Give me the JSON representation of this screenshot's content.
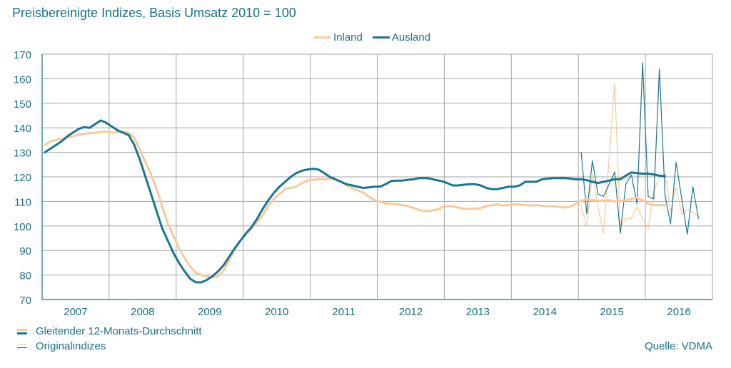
{
  "chart_data": {
    "type": "line",
    "title": "Preisbereinigte Indizes, Basis Umsatz 2010 = 100",
    "xlabel": "",
    "ylabel": "",
    "ylim": [
      70,
      170
    ],
    "yticks": [
      "70",
      "80",
      "90",
      "100",
      "110",
      "120",
      "130",
      "140",
      "150",
      "160",
      "170"
    ],
    "x_categories": [
      "2007",
      "2008",
      "2009",
      "2010",
      "2011",
      "2012",
      "2013",
      "2014",
      "2015",
      "2016"
    ],
    "x_unit": "month index from Jan 2007",
    "grid": true,
    "legend_top": [
      {
        "name": "Inland",
        "color": "#f9c99a"
      },
      {
        "name": "Ausland",
        "color": "#1a7690"
      }
    ],
    "legend_bottom": [
      {
        "name": "Gleitender 12-Monats-Durchschnitt",
        "style": "thick"
      },
      {
        "name": "Originalindizes",
        "style": "thin"
      }
    ],
    "source": "Quelle: VDMA",
    "series": [
      {
        "name": "Inland – Gleitender 12-Monats-Durchschnitt",
        "color": "#f9c99a",
        "kind": "moving_average",
        "start_month": 0,
        "values": [
          133,
          134.5,
          135,
          135.5,
          136,
          136.5,
          137.2,
          137.5,
          137.8,
          138,
          138.3,
          138.5,
          138,
          138.2,
          138.5,
          138,
          136,
          131,
          126,
          121,
          115,
          108,
          101,
          96,
          91,
          87,
          83.5,
          81,
          80,
          79.5,
          79,
          79.5,
          82,
          86,
          90.5,
          94,
          96.5,
          99,
          101.5,
          104.5,
          108.5,
          111,
          113,
          115,
          115.5,
          116,
          117.5,
          118.5,
          118.8,
          119,
          119,
          119.2,
          119,
          118,
          116.5,
          115.5,
          114.5,
          113.5,
          112,
          110.5,
          109.8,
          109.2,
          109,
          108.8,
          108.5,
          108,
          107.3,
          106.5,
          106,
          106.2,
          106.5,
          107.5,
          108,
          108,
          107.5,
          107,
          107,
          107,
          107.3,
          108,
          108.5,
          108.8,
          108.3,
          108.5,
          108.8,
          108.7,
          108.5,
          108.3,
          108.5,
          108.2,
          108,
          108,
          107.8,
          107.5,
          107.8,
          109,
          110.3,
          110.8,
          110.5,
          110.3,
          110.3,
          110.5,
          110,
          110.2,
          110.5,
          111,
          111.5,
          110.5,
          109,
          108.5,
          108.5,
          108.5
        ]
      },
      {
        "name": "Ausland – Gleitender 12-Monats-Durchschnitt",
        "color": "#1a7690",
        "kind": "moving_average",
        "start_month": 0,
        "values": [
          130,
          131.5,
          133,
          134.5,
          136.5,
          138,
          139.5,
          140.3,
          140,
          141.5,
          143,
          142,
          140.5,
          139,
          138,
          137,
          133,
          127,
          120,
          113,
          106,
          99,
          94,
          89,
          85,
          81.5,
          78.5,
          77,
          77,
          78,
          79.5,
          81.5,
          84,
          87.5,
          91,
          94,
          97,
          99.5,
          103,
          107,
          110.5,
          113.5,
          116,
          118,
          120,
          121.5,
          122.5,
          123,
          123.3,
          123,
          121.5,
          120,
          119,
          118,
          117,
          116.5,
          116,
          115.5,
          115.7,
          116,
          116,
          117,
          118.3,
          118.5,
          118.5,
          118.8,
          119,
          119.5,
          119.5,
          119.3,
          118.7,
          118.3,
          117.5,
          116.5,
          116.5,
          116.8,
          117,
          117,
          116.5,
          115.5,
          115,
          115,
          115.5,
          116,
          116,
          116.5,
          118,
          118,
          118,
          119,
          119.3,
          119.5,
          119.5,
          119.5,
          119.3,
          119,
          119,
          118.7,
          118,
          117.5,
          118,
          118.5,
          119,
          119,
          120.5,
          121.8,
          121.5,
          121.3,
          121.3,
          121,
          120.5,
          120.3
        ]
      },
      {
        "name": "Inland – Originalindizes",
        "color": "#f9c99a",
        "kind": "original",
        "start_month": 96,
        "values": [
          107.8,
          100,
          121,
          108,
          97,
          null,
          158,
          100,
          103,
          103,
          107.8,
          103,
          99,
          114.5,
          119.4,
          121.3,
          105.8,
          115.7,
          104.5,
          106.7,
          105.6,
          104
        ]
      },
      {
        "name": "Ausland – Originalindizes",
        "color": "#1a7690",
        "kind": "original",
        "start_month": 96,
        "values": [
          130,
          105,
          126.6,
          113,
          112,
          null,
          122,
          97,
          117,
          120.8,
          109,
          166.5,
          112,
          111,
          164,
          112.7,
          100.8,
          126,
          111,
          96.6,
          116,
          103
        ]
      }
    ]
  }
}
